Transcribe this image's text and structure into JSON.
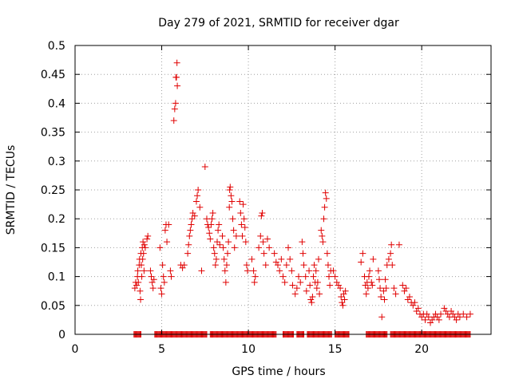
{
  "chart_data": {
    "type": "scatter",
    "title": "Day 279 of 2021, SRMTID for receiver dgar",
    "xlabel": "GPS time / hours",
    "ylabel": "SRMTID / TECUs",
    "xlim": [
      0,
      24
    ],
    "ylim": [
      0,
      0.5
    ],
    "x_ticks": [
      0,
      5,
      10,
      15,
      20
    ],
    "x_tick_labels": [
      "0",
      "5",
      "10",
      "15",
      "20"
    ],
    "y_ticks": [
      0,
      0.05,
      0.1,
      0.15,
      0.2,
      0.25,
      0.3,
      0.35,
      0.4,
      0.45,
      0.5
    ],
    "y_tick_labels": [
      "0",
      "0.05",
      "0.1",
      "0.15",
      "0.2",
      "0.25",
      "0.3",
      "0.35",
      "0.4",
      "0.45",
      "0.5"
    ],
    "grid": true,
    "marker": "+",
    "color": "#e00000",
    "zero_band": [
      [
        3.4,
        3.8
      ],
      [
        4.6,
        7.6
      ],
      [
        7.8,
        11.6
      ],
      [
        12.0,
        12.6
      ],
      [
        12.8,
        13.2
      ],
      [
        13.4,
        14.8
      ],
      [
        15.0,
        15.8
      ],
      [
        16.8,
        18.0
      ],
      [
        18.2,
        22.8
      ]
    ],
    "series": [
      {
        "name": "SRMTID",
        "points": [
          [
            3.45,
            0.08
          ],
          [
            3.5,
            0.09
          ],
          [
            3.55,
            0.085
          ],
          [
            3.6,
            0.1
          ],
          [
            3.62,
            0.11
          ],
          [
            3.65,
            0.09
          ],
          [
            3.7,
            0.12
          ],
          [
            3.72,
            0.13
          ],
          [
            3.75,
            0.075
          ],
          [
            3.78,
            0.06
          ],
          [
            3.8,
            0.14
          ],
          [
            3.82,
            0.12
          ],
          [
            3.85,
            0.1
          ],
          [
            3.88,
            0.15
          ],
          [
            3.9,
            0.13
          ],
          [
            3.92,
            0.16
          ],
          [
            3.95,
            0.14
          ],
          [
            3.98,
            0.11
          ],
          [
            4.0,
            0.155
          ],
          [
            4.05,
            0.15
          ],
          [
            4.15,
            0.165
          ],
          [
            4.2,
            0.17
          ],
          [
            4.35,
            0.11
          ],
          [
            4.4,
            0.1
          ],
          [
            4.45,
            0.09
          ],
          [
            4.5,
            0.08
          ],
          [
            4.55,
            0.095
          ],
          [
            4.9,
            0.15
          ],
          [
            4.95,
            0.08
          ],
          [
            5.0,
            0.07
          ],
          [
            5.05,
            0.12
          ],
          [
            5.1,
            0.1
          ],
          [
            5.15,
            0.09
          ],
          [
            5.2,
            0.18
          ],
          [
            5.25,
            0.19
          ],
          [
            5.3,
            0.16
          ],
          [
            5.4,
            0.19
          ],
          [
            5.5,
            0.11
          ],
          [
            5.55,
            0.1
          ],
          [
            5.7,
            0.37
          ],
          [
            5.75,
            0.39
          ],
          [
            5.8,
            0.4
          ],
          [
            5.82,
            0.445
          ],
          [
            5.85,
            0.445
          ],
          [
            5.9,
            0.43
          ],
          [
            5.88,
            0.47
          ],
          [
            6.1,
            0.12
          ],
          [
            6.2,
            0.115
          ],
          [
            6.3,
            0.12
          ],
          [
            6.5,
            0.14
          ],
          [
            6.55,
            0.155
          ],
          [
            6.6,
            0.17
          ],
          [
            6.65,
            0.18
          ],
          [
            6.7,
            0.19
          ],
          [
            6.75,
            0.2
          ],
          [
            6.8,
            0.21
          ],
          [
            6.9,
            0.205
          ],
          [
            7.0,
            0.23
          ],
          [
            7.05,
            0.24
          ],
          [
            7.1,
            0.25
          ],
          [
            7.2,
            0.22
          ],
          [
            7.3,
            0.11
          ],
          [
            7.5,
            0.29
          ],
          [
            7.6,
            0.2
          ],
          [
            7.65,
            0.19
          ],
          [
            7.7,
            0.185
          ],
          [
            7.75,
            0.175
          ],
          [
            7.8,
            0.165
          ],
          [
            7.85,
            0.19
          ],
          [
            7.9,
            0.2
          ],
          [
            7.95,
            0.21
          ],
          [
            8.0,
            0.15
          ],
          [
            8.05,
            0.14
          ],
          [
            8.1,
            0.12
          ],
          [
            8.15,
            0.13
          ],
          [
            8.2,
            0.16
          ],
          [
            8.25,
            0.18
          ],
          [
            8.3,
            0.19
          ],
          [
            8.35,
            0.155
          ],
          [
            8.5,
            0.17
          ],
          [
            8.55,
            0.15
          ],
          [
            8.6,
            0.13
          ],
          [
            8.65,
            0.11
          ],
          [
            8.7,
            0.09
          ],
          [
            8.75,
            0.12
          ],
          [
            8.8,
            0.14
          ],
          [
            8.85,
            0.16
          ],
          [
            8.9,
            0.22
          ],
          [
            8.92,
            0.25
          ],
          [
            8.95,
            0.255
          ],
          [
            9.0,
            0.24
          ],
          [
            9.05,
            0.23
          ],
          [
            9.1,
            0.2
          ],
          [
            9.15,
            0.18
          ],
          [
            9.2,
            0.15
          ],
          [
            9.3,
            0.17
          ],
          [
            9.5,
            0.23
          ],
          [
            9.55,
            0.21
          ],
          [
            9.6,
            0.19
          ],
          [
            9.65,
            0.17
          ],
          [
            9.7,
            0.225
          ],
          [
            9.75,
            0.2
          ],
          [
            9.8,
            0.185
          ],
          [
            9.85,
            0.16
          ],
          [
            9.9,
            0.12
          ],
          [
            9.95,
            0.11
          ],
          [
            10.2,
            0.13
          ],
          [
            10.3,
            0.11
          ],
          [
            10.35,
            0.09
          ],
          [
            10.4,
            0.1
          ],
          [
            10.6,
            0.15
          ],
          [
            10.7,
            0.17
          ],
          [
            10.75,
            0.205
          ],
          [
            10.8,
            0.21
          ],
          [
            10.85,
            0.16
          ],
          [
            10.9,
            0.14
          ],
          [
            11.0,
            0.12
          ],
          [
            11.1,
            0.165
          ],
          [
            11.2,
            0.15
          ],
          [
            11.5,
            0.14
          ],
          [
            11.6,
            0.125
          ],
          [
            11.7,
            0.12
          ],
          [
            11.8,
            0.11
          ],
          [
            11.9,
            0.13
          ],
          [
            12.0,
            0.1
          ],
          [
            12.1,
            0.09
          ],
          [
            12.2,
            0.12
          ],
          [
            12.3,
            0.15
          ],
          [
            12.4,
            0.13
          ],
          [
            12.5,
            0.11
          ],
          [
            12.55,
            0.085
          ],
          [
            12.7,
            0.07
          ],
          [
            12.8,
            0.08
          ],
          [
            12.9,
            0.1
          ],
          [
            13.0,
            0.09
          ],
          [
            13.1,
            0.16
          ],
          [
            13.15,
            0.14
          ],
          [
            13.2,
            0.12
          ],
          [
            13.3,
            0.1
          ],
          [
            13.35,
            0.075
          ],
          [
            13.5,
            0.11
          ],
          [
            13.55,
            0.085
          ],
          [
            13.6,
            0.06
          ],
          [
            13.65,
            0.055
          ],
          [
            13.7,
            0.065
          ],
          [
            13.75,
            0.1
          ],
          [
            13.8,
            0.12
          ],
          [
            13.85,
            0.09
          ],
          [
            13.9,
            0.11
          ],
          [
            13.95,
            0.08
          ],
          [
            14.0,
            0.09
          ],
          [
            14.05,
            0.13
          ],
          [
            14.1,
            0.07
          ],
          [
            14.2,
            0.18
          ],
          [
            14.25,
            0.17
          ],
          [
            14.3,
            0.16
          ],
          [
            14.35,
            0.2
          ],
          [
            14.4,
            0.22
          ],
          [
            14.45,
            0.245
          ],
          [
            14.5,
            0.235
          ],
          [
            14.55,
            0.14
          ],
          [
            14.6,
            0.12
          ],
          [
            14.65,
            0.1
          ],
          [
            14.7,
            0.085
          ],
          [
            14.75,
            0.11
          ],
          [
            14.9,
            0.11
          ],
          [
            15.0,
            0.1
          ],
          [
            15.1,
            0.09
          ],
          [
            15.2,
            0.085
          ],
          [
            15.3,
            0.08
          ],
          [
            15.35,
            0.065
          ],
          [
            15.4,
            0.055
          ],
          [
            15.45,
            0.05
          ],
          [
            15.5,
            0.07
          ],
          [
            15.55,
            0.06
          ],
          [
            15.6,
            0.075
          ],
          [
            16.5,
            0.125
          ],
          [
            16.6,
            0.14
          ],
          [
            16.7,
            0.1
          ],
          [
            16.75,
            0.085
          ],
          [
            16.8,
            0.07
          ],
          [
            16.85,
            0.09
          ],
          [
            16.9,
            0.08
          ],
          [
            16.95,
            0.1
          ],
          [
            17.0,
            0.11
          ],
          [
            17.1,
            0.09
          ],
          [
            17.15,
            0.085
          ],
          [
            17.2,
            0.13
          ],
          [
            17.5,
            0.11
          ],
          [
            17.55,
            0.095
          ],
          [
            17.6,
            0.08
          ],
          [
            17.65,
            0.065
          ],
          [
            17.7,
            0.03
          ],
          [
            17.8,
            0.075
          ],
          [
            17.85,
            0.06
          ],
          [
            17.9,
            0.095
          ],
          [
            17.95,
            0.08
          ],
          [
            18.0,
            0.12
          ],
          [
            18.1,
            0.13
          ],
          [
            18.2,
            0.14
          ],
          [
            18.25,
            0.155
          ],
          [
            18.3,
            0.12
          ],
          [
            18.4,
            0.08
          ],
          [
            18.5,
            0.07
          ],
          [
            18.7,
            0.155
          ],
          [
            18.9,
            0.085
          ],
          [
            19.0,
            0.075
          ],
          [
            19.1,
            0.08
          ],
          [
            19.2,
            0.06
          ],
          [
            19.3,
            0.065
          ],
          [
            19.4,
            0.055
          ],
          [
            19.5,
            0.05
          ],
          [
            19.6,
            0.055
          ],
          [
            19.7,
            0.04
          ],
          [
            19.8,
            0.045
          ],
          [
            19.9,
            0.035
          ],
          [
            20.0,
            0.03
          ],
          [
            20.1,
            0.035
          ],
          [
            20.2,
            0.025
          ],
          [
            20.3,
            0.035
          ],
          [
            20.4,
            0.03
          ],
          [
            20.5,
            0.02
          ],
          [
            20.6,
            0.025
          ],
          [
            20.7,
            0.03
          ],
          [
            20.8,
            0.035
          ],
          [
            20.9,
            0.03
          ],
          [
            21.0,
            0.025
          ],
          [
            21.1,
            0.035
          ],
          [
            21.3,
            0.045
          ],
          [
            21.4,
            0.04
          ],
          [
            21.5,
            0.035
          ],
          [
            21.6,
            0.03
          ],
          [
            21.7,
            0.04
          ],
          [
            21.8,
            0.035
          ],
          [
            21.9,
            0.03
          ],
          [
            22.0,
            0.025
          ],
          [
            22.1,
            0.035
          ],
          [
            22.2,
            0.03
          ],
          [
            22.4,
            0.035
          ],
          [
            22.6,
            0.03
          ],
          [
            22.8,
            0.035
          ]
        ]
      }
    ]
  }
}
